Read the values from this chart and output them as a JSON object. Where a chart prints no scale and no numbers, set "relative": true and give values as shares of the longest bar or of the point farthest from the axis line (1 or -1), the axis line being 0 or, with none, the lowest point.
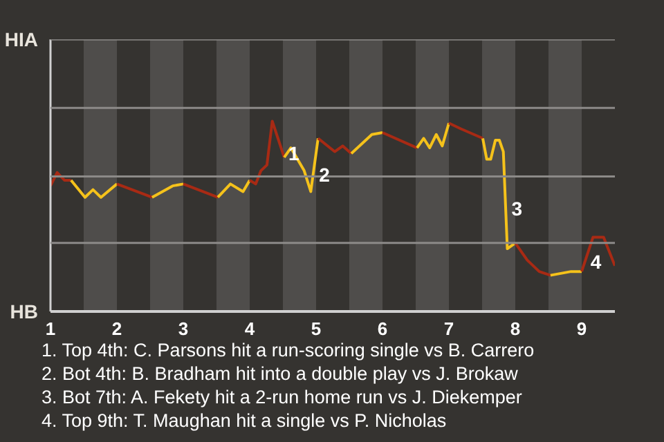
{
  "chart_data": {
    "type": "line",
    "relative": true,
    "series": [
      {
        "color": "#a82a14",
        "x": [
          1,
          1.1,
          1.21,
          1.31
        ],
        "values": [
          0.66,
          0.73,
          0.69,
          0.69
        ]
      },
      {
        "color": "#f5c21b",
        "x": [
          1.31,
          1.52,
          1.64,
          1.76,
          2
        ],
        "values": [
          0.69,
          0.6,
          0.64,
          0.6,
          0.67
        ]
      },
      {
        "color": "#a82a14",
        "x": [
          2,
          2.53
        ],
        "values": [
          0.67,
          0.6
        ]
      },
      {
        "color": "#f5c21b",
        "x": [
          2.53,
          2.84,
          3
        ],
        "values": [
          0.6,
          0.66,
          0.67
        ]
      },
      {
        "color": "#a82a14",
        "x": [
          3,
          3.52
        ],
        "values": [
          0.67,
          0.6
        ]
      },
      {
        "color": "#f5c21b",
        "x": [
          3.52,
          3.71,
          3.9,
          4
        ],
        "values": [
          0.6,
          0.67,
          0.63,
          0.69
        ]
      },
      {
        "color": "#a82a14",
        "x": [
          4,
          4.09,
          4.17,
          4.26,
          4.34,
          4.52
        ],
        "values": [
          0.69,
          0.67,
          0.74,
          0.77,
          1,
          0.81
        ]
      },
      {
        "color": "#f5c21b",
        "x": [
          4.52,
          4.62,
          4.82,
          4.92,
          5.03
        ],
        "values": [
          0.81,
          0.86,
          0.74,
          0.63,
          0.91
        ]
      },
      {
        "color": "#a82a14",
        "x": [
          5.03,
          5.28,
          5.4,
          5.53
        ],
        "values": [
          0.91,
          0.84,
          0.87,
          0.83
        ]
      },
      {
        "color": "#f5c21b",
        "x": [
          5.53,
          5.84,
          6
        ],
        "values": [
          0.83,
          0.93,
          0.94
        ]
      },
      {
        "color": "#a82a14",
        "x": [
          6,
          6.52
        ],
        "values": [
          0.94,
          0.86
        ]
      },
      {
        "color": "#f5c21b",
        "x": [
          6.52,
          6.62,
          6.71,
          6.81,
          6.9,
          7
        ],
        "values": [
          0.86,
          0.91,
          0.86,
          0.93,
          0.87,
          0.99
        ]
      },
      {
        "color": "#a82a14",
        "x": [
          7,
          7.18,
          7.51
        ],
        "values": [
          0.99,
          0.96,
          0.91
        ]
      },
      {
        "color": "#f5c21b",
        "x": [
          7.51,
          7.57,
          7.63,
          7.7,
          7.76,
          7.82,
          7.88,
          8
        ],
        "values": [
          0.91,
          0.8,
          0.8,
          0.9,
          0.9,
          0.84,
          0.33,
          0.36
        ]
      },
      {
        "color": "#a82a14",
        "x": [
          8,
          8.18,
          8.36,
          8.53
        ],
        "values": [
          0.36,
          0.27,
          0.21,
          0.19
        ]
      },
      {
        "color": "#f5c21b",
        "x": [
          8.53,
          8.84,
          9
        ],
        "values": [
          0.19,
          0.21,
          0.21
        ]
      },
      {
        "color": "#a82a14",
        "x": [
          9,
          9.17,
          9.33,
          9.5
        ],
        "values": [
          0.21,
          0.39,
          0.39,
          0.24
        ]
      }
    ],
    "xlim": [
      1,
      9.5
    ],
    "xticks": [
      1,
      2,
      3,
      4,
      5,
      6,
      7,
      8,
      9
    ],
    "marker": "none",
    "line_style": "solid",
    "ref_lines": [
      {
        "axis": "y",
        "value": 0.36,
        "color": "#8c8a88"
      },
      {
        "axis": "y",
        "value": 0.71,
        "color": "#8c8a88"
      },
      {
        "axis": "y",
        "value": 1.07,
        "color": "#8c8a88"
      },
      {
        "axis": "y",
        "value": 1.43,
        "color": "#8c8a88"
      }
    ],
    "bands": [
      {
        "axis": "x",
        "from": 1.5,
        "to": 2,
        "color": "#4f4d4b"
      },
      {
        "axis": "x",
        "from": 2.5,
        "to": 3,
        "color": "#4f4d4b"
      },
      {
        "axis": "x",
        "from": 3.5,
        "to": 4,
        "color": "#4f4d4b"
      },
      {
        "axis": "x",
        "from": 4.5,
        "to": 5,
        "color": "#4f4d4b"
      },
      {
        "axis": "x",
        "from": 5.5,
        "to": 6,
        "color": "#4f4d4b"
      },
      {
        "axis": "x",
        "from": 6.5,
        "to": 7,
        "color": "#4f4d4b"
      },
      {
        "axis": "x",
        "from": 7.5,
        "to": 8,
        "color": "#4f4d4b"
      },
      {
        "axis": "x",
        "from": 8.5,
        "to": 9,
        "color": "#4f4d4b"
      }
    ],
    "annotations": [
      {
        "text": "1",
        "x": 4.5,
        "y": 0.83
      },
      {
        "text": "2",
        "x": 4.96,
        "y": 0.72
      },
      {
        "text": "3",
        "x": 7.86,
        "y": 0.54
      },
      {
        "text": "4",
        "x": 9.05,
        "y": 0.26
      },
      "HIA",
      "HB",
      "1. Top 4th: C. Parsons hit a run-scoring single vs B. Carrero",
      "2. Bot 4th: B. Bradham hit into a double play vs J. Brokaw",
      "3. Bot 7th: A. Fekety hit a 2-run home run vs J. Diekemper",
      "4. Top 9th: T. Maughan hit a single vs P. Nicholas"
    ]
  }
}
